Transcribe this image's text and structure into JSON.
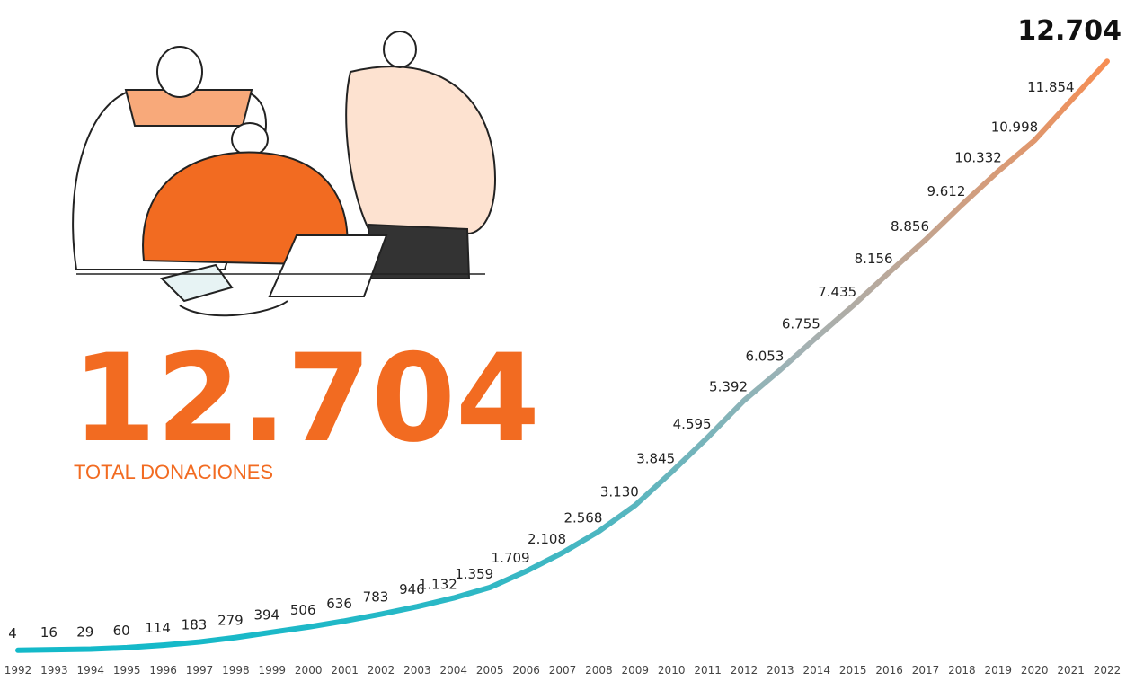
{
  "chart_data": {
    "type": "line",
    "headline": "12.704",
    "headline_label": "TOTAL DONACIONES",
    "categories": [
      "1992",
      "1993",
      "1994",
      "1995",
      "1996",
      "1997",
      "1998",
      "1999",
      "2000",
      "2001",
      "2002",
      "2003",
      "2004",
      "2005",
      "2006",
      "2007",
      "2008",
      "2009",
      "2010",
      "2011",
      "2012",
      "2013",
      "2014",
      "2015",
      "2016",
      "2017",
      "2018",
      "2019",
      "2020",
      "2021",
      "2022"
    ],
    "values": [
      4,
      16,
      29,
      60,
      114,
      183,
      279,
      394,
      506,
      636,
      783,
      946,
      1132,
      1359,
      1709,
      2108,
      2568,
      3130,
      3845,
      4595,
      5392,
      6053,
      6755,
      7435,
      8156,
      8856,
      9612,
      10332,
      10998,
      11854,
      12704
    ],
    "value_labels": [
      "4",
      "16",
      "29",
      "60",
      "114",
      "183",
      "279",
      "394",
      "506",
      "636",
      "783",
      "946",
      "1.132",
      "1.359",
      "1.709",
      "2.108",
      "2.568",
      "3.130",
      "3.845",
      "4.595",
      "5.392",
      "6.053",
      "6.755",
      "7.435",
      "8.156",
      "8.856",
      "9.612",
      "10.332",
      "10.998",
      "11.854",
      "12.704"
    ],
    "gradient": [
      "#13b9c9",
      "#a3b2b4",
      "#f98c50"
    ],
    "accent_color": "#f26b21",
    "ylim": [
      0,
      13000
    ]
  }
}
